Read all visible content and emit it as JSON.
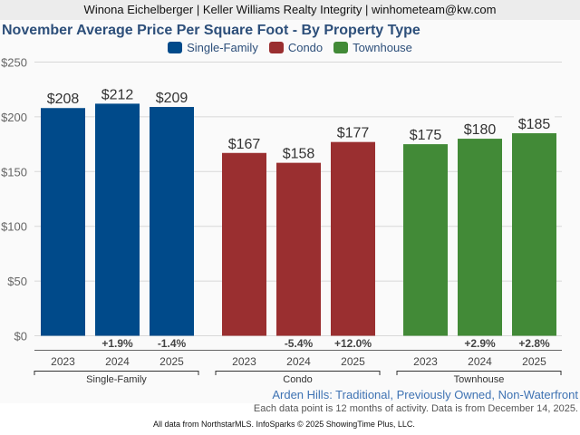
{
  "header": {
    "agent_line": "Winona Eichelberger | Keller Williams Realty Integrity | winhometeam@kw.com"
  },
  "chart_data": {
    "type": "bar",
    "title": "November Average Price Per Square Foot - By Property Type",
    "xlabel": "",
    "ylabel": "",
    "ylim": [
      0,
      250
    ],
    "yticks": [
      0,
      50,
      100,
      150,
      200,
      250
    ],
    "ytick_labels": [
      "$0",
      "$50",
      "$100",
      "$150",
      "$200",
      "$250"
    ],
    "grid": true,
    "legend_position": "top-center",
    "legend": [
      {
        "name": "Single-Family",
        "color": "#004a8a"
      },
      {
        "name": "Condo",
        "color": "#9a2f30"
      },
      {
        "name": "Townhouse",
        "color": "#428a37"
      }
    ],
    "groups": [
      {
        "name": "Single-Family",
        "color": "#004a8a",
        "categories": [
          "2023",
          "2024",
          "2025"
        ],
        "values": [
          208,
          212,
          209
        ],
        "value_labels": [
          "$208",
          "$212",
          "$209"
        ],
        "changes": [
          "",
          "+1.9%",
          "-1.4%"
        ]
      },
      {
        "name": "Condo",
        "color": "#9a2f30",
        "categories": [
          "2023",
          "2024",
          "2025"
        ],
        "values": [
          167,
          158,
          177
        ],
        "value_labels": [
          "$167",
          "$158",
          "$177"
        ],
        "changes": [
          "",
          "-5.4%",
          "+12.0%"
        ]
      },
      {
        "name": "Townhouse",
        "color": "#428a37",
        "categories": [
          "2023",
          "2024",
          "2025"
        ],
        "values": [
          175,
          180,
          185
        ],
        "value_labels": [
          "$175",
          "$180",
          "$185"
        ],
        "changes": [
          "",
          "+2.9%",
          "+2.8%"
        ]
      }
    ]
  },
  "footer": {
    "subtitle": "Arden Hills: Traditional, Previously Owned, Non-Waterfront",
    "note": "Each data point is 12 months of activity. Data is from December 14, 2025.",
    "credit": "All data from NorthstarMLS. InfoSparks © 2025 ShowingTime Plus, LLC."
  }
}
